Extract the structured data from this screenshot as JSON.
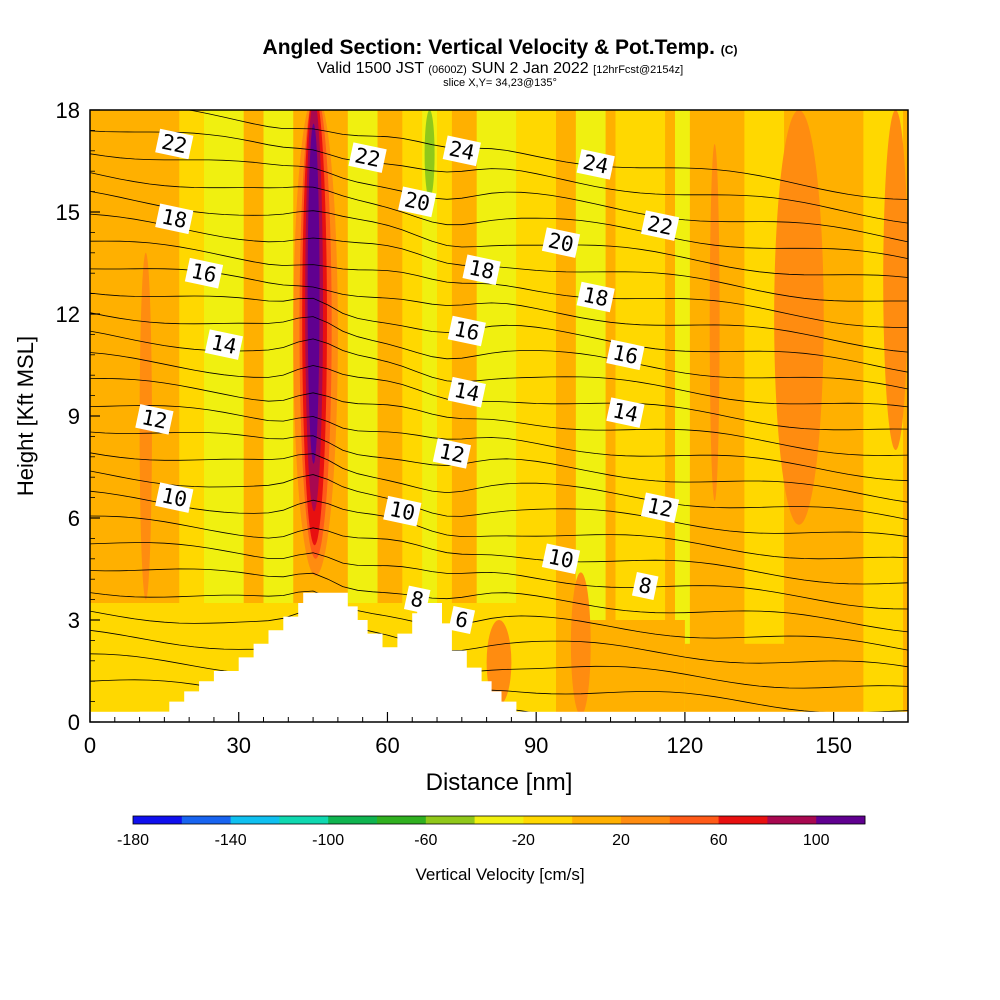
{
  "title": {
    "main": "Angled Section: Vertical Velocity & Pot.Temp.",
    "main_tag": "(C)",
    "valid_prefix": "Valid 1500 JST",
    "valid_utc": "(0600Z)",
    "valid_date": "SUN 2 Jan 2022",
    "forecast": "[12hrFcst@2154z]",
    "slice": "slice X,Y= 34,23@135°"
  },
  "chart_data": {
    "type": "heatmap",
    "xlabel": "Distance [nm]",
    "ylabel": "Height [Kft MSL]",
    "xlim": [
      0,
      165
    ],
    "ylim": [
      0,
      18
    ],
    "x_ticks": [
      0,
      30,
      60,
      90,
      120,
      150
    ],
    "y_ticks": [
      0,
      3,
      6,
      9,
      12,
      15,
      18
    ],
    "colorbar": {
      "label": "Vertical Velocity [cm/s]",
      "min": -180,
      "max": 120,
      "tick_labels": [
        -180,
        -140,
        -100,
        -60,
        -20,
        20,
        60,
        100
      ],
      "colors": [
        "#1010ee",
        "#1864f0",
        "#10c0f0",
        "#10d8b0",
        "#10b450",
        "#30b020",
        "#90c81a",
        "#f0f010",
        "#ffd800",
        "#ffb000",
        "#ff8c10",
        "#ff5a18",
        "#e81010",
        "#a80850",
        "#600090"
      ]
    },
    "theta_contour_labels": [
      {
        "value": 22,
        "x": 17,
        "y": 17
      },
      {
        "value": 22,
        "x": 56,
        "y": 16.6
      },
      {
        "value": 24,
        "x": 75,
        "y": 16.8
      },
      {
        "value": 24,
        "x": 102,
        "y": 16.4
      },
      {
        "value": 20,
        "x": 66,
        "y": 15.3
      },
      {
        "value": 22,
        "x": 115,
        "y": 14.6
      },
      {
        "value": 20,
        "x": 95,
        "y": 14.1
      },
      {
        "value": 18,
        "x": 17,
        "y": 14.8
      },
      {
        "value": 18,
        "x": 79,
        "y": 13.3
      },
      {
        "value": 18,
        "x": 102,
        "y": 12.5
      },
      {
        "value": 16,
        "x": 23,
        "y": 13.2
      },
      {
        "value": 16,
        "x": 76,
        "y": 11.5
      },
      {
        "value": 16,
        "x": 108,
        "y": 10.8
      },
      {
        "value": 14,
        "x": 27,
        "y": 11.1
      },
      {
        "value": 14,
        "x": 76,
        "y": 9.7
      },
      {
        "value": 14,
        "x": 108,
        "y": 9.1
      },
      {
        "value": 12,
        "x": 13,
        "y": 8.9
      },
      {
        "value": 12,
        "x": 73,
        "y": 7.9
      },
      {
        "value": 12,
        "x": 115,
        "y": 6.3
      },
      {
        "value": 10,
        "x": 17,
        "y": 6.6
      },
      {
        "value": 10,
        "x": 63,
        "y": 6.2
      },
      {
        "value": 10,
        "x": 95,
        "y": 4.8
      },
      {
        "value": 8,
        "x": 66,
        "y": 3.6
      },
      {
        "value": 8,
        "x": 112,
        "y": 4.0
      },
      {
        "value": 6,
        "x": 75,
        "y": 3.0
      }
    ],
    "terrain": [
      [
        10,
        0
      ],
      [
        10,
        0.3
      ],
      [
        16,
        0.3
      ],
      [
        16,
        0.6
      ],
      [
        19,
        0.6
      ],
      [
        19,
        0.9
      ],
      [
        22,
        0.9
      ],
      [
        22,
        1.2
      ],
      [
        25,
        1.2
      ],
      [
        25,
        1.5
      ],
      [
        30,
        1.5
      ],
      [
        30,
        1.9
      ],
      [
        33,
        1.9
      ],
      [
        33,
        2.3
      ],
      [
        36,
        2.3
      ],
      [
        36,
        2.7
      ],
      [
        39,
        2.7
      ],
      [
        39,
        3.1
      ],
      [
        42,
        3.1
      ],
      [
        42,
        3.5
      ],
      [
        43,
        3.5
      ],
      [
        43,
        3.8
      ],
      [
        52,
        3.8
      ],
      [
        52,
        3.4
      ],
      [
        54,
        3.4
      ],
      [
        54,
        3.0
      ],
      [
        56,
        3.0
      ],
      [
        56,
        2.6
      ],
      [
        59,
        2.6
      ],
      [
        59,
        2.2
      ],
      [
        62,
        2.2
      ],
      [
        62,
        2.6
      ],
      [
        65,
        2.6
      ],
      [
        65,
        3.2
      ],
      [
        66,
        3.2
      ],
      [
        66,
        3.5
      ],
      [
        71,
        3.5
      ],
      [
        71,
        2.9
      ],
      [
        73,
        2.9
      ],
      [
        73,
        2.1
      ],
      [
        76,
        2.1
      ],
      [
        76,
        1.6
      ],
      [
        79,
        1.6
      ],
      [
        79,
        1.2
      ],
      [
        81,
        1.2
      ],
      [
        81,
        0.9
      ],
      [
        83,
        0.9
      ],
      [
        83,
        0.6
      ],
      [
        86,
        0.6
      ],
      [
        86,
        0.3
      ],
      [
        89,
        0.3
      ],
      [
        89,
        0
      ]
    ],
    "updraft_max_cm_s": 100
  }
}
